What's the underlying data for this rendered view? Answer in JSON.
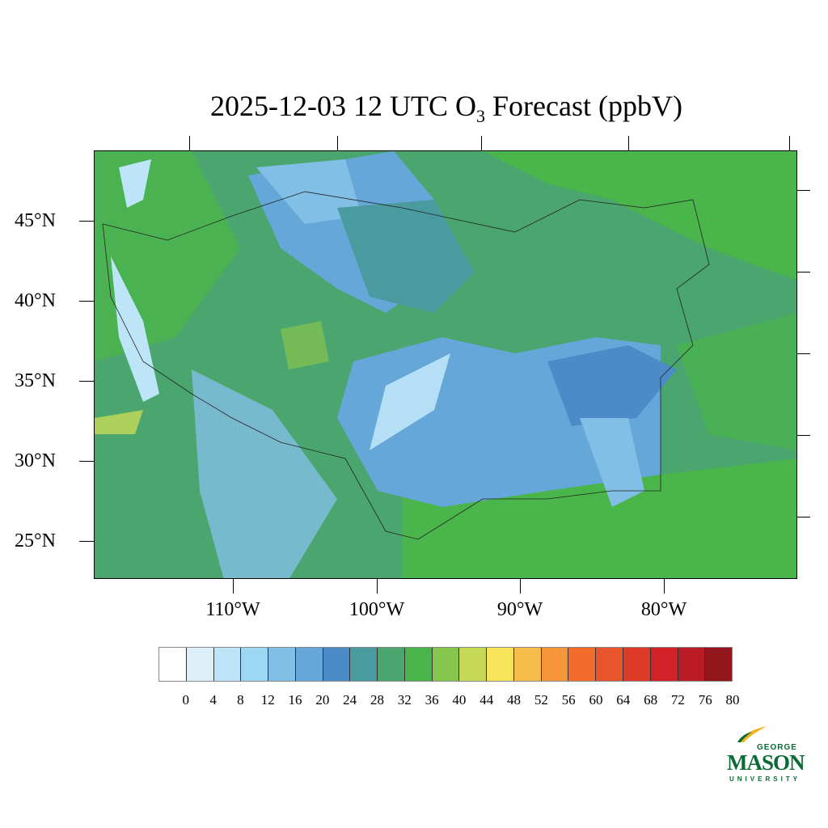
{
  "title": {
    "prefix": "2025-12-03 12 UTC O",
    "subscript": "3",
    "suffix": " Forecast (ppbV)"
  },
  "axes": {
    "lat_labels": [
      "45°N",
      "40°N",
      "35°N",
      "30°N",
      "25°N"
    ],
    "lon_labels": [
      "110°W",
      "100°W",
      "90°W",
      "80°W"
    ]
  },
  "colorbar": {
    "labels": [
      "0",
      "4",
      "8",
      "12",
      "16",
      "20",
      "24",
      "28",
      "32",
      "36",
      "40",
      "44",
      "48",
      "52",
      "56",
      "60",
      "64",
      "68",
      "72",
      "76",
      "80"
    ],
    "colors": [
      "#ffffff",
      "#ddf0fa",
      "#bde5f7",
      "#9dd7f4",
      "#82bfe6",
      "#66a7da",
      "#4a8bc8",
      "#4a9ba0",
      "#4aa56e",
      "#4ab54a",
      "#86c54e",
      "#c5d957",
      "#f7e45a",
      "#f7bd4b",
      "#f7953b",
      "#f46c2b",
      "#e8542b",
      "#de3a28",
      "#d32128",
      "#b91c24",
      "#93161c"
    ]
  },
  "logo": {
    "line1": "GEORGE",
    "line2": "MASON",
    "line3": "UNIVERSITY"
  }
}
